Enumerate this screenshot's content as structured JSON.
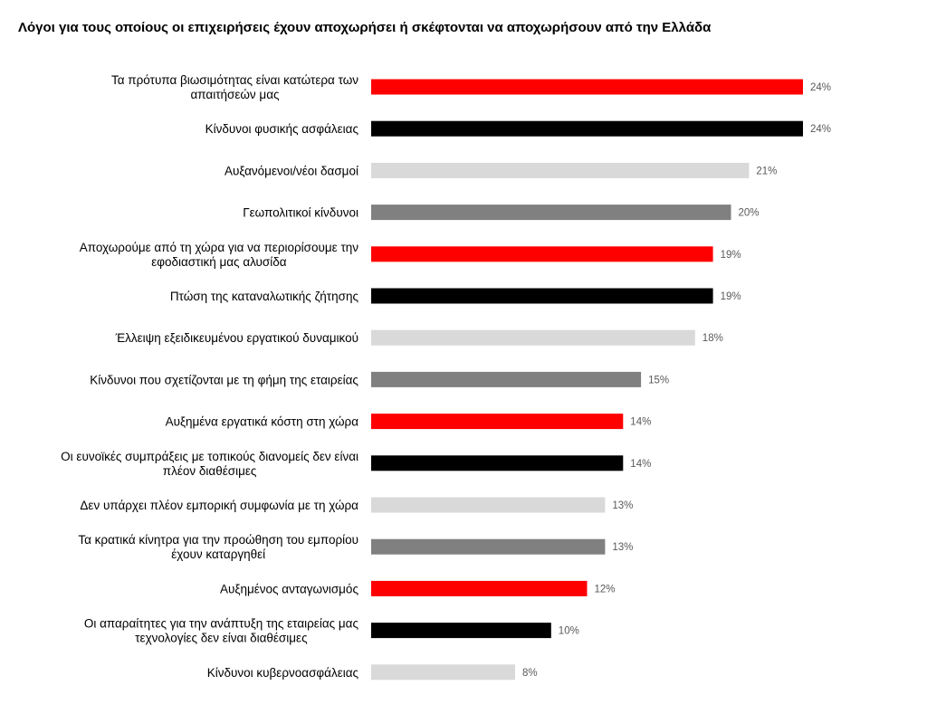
{
  "chart_data": {
    "type": "bar",
    "orientation": "horizontal",
    "title": "Λόγοι για τους οποίους οι επιχειρήσεις έχουν αποχωρήσει ή σκέφτονται να αποχωρήσουν από την Ελλάδα",
    "xlim": [
      0,
      24
    ],
    "value_suffix": "%",
    "grid": false,
    "categories": [
      [
        "Τα πρότυπα βιωσιμότητας είναι κατώτερα των",
        "απαιτήσεών μας"
      ],
      [
        "Κίνδυνοι φυσικής ασφάλειας"
      ],
      [
        "Αυξανόμενοι/νέοι δασμοί"
      ],
      [
        "Γεωπολιτικοί κίνδυνοι"
      ],
      [
        "Αποχωρούμε από τη χώρα για να περιορίσουμε την",
        "εφοδιαστική μας αλυσίδα"
      ],
      [
        "Πτώση της καταναλωτικής ζήτησης"
      ],
      [
        "Έλλειψη εξειδικευμένου εργατικού δυναμικού"
      ],
      [
        "Κίνδυνοι που σχετίζονται με τη φήμη της εταιρείας"
      ],
      [
        "Αυξημένα εργατικά κόστη στη χώρα"
      ],
      [
        "Οι ευνοϊκές συμπράξεις με τοπικούς διανομείς δεν είναι",
        "πλέον διαθέσιμες"
      ],
      [
        "Δεν υπάρχει πλέον εμπορική συμφωνία με τη χώρα"
      ],
      [
        "Τα κρατικά κίνητρα για την προώθηση του εμπορίου",
        "έχουν καταργηθεί"
      ],
      [
        "Αυξημένος ανταγωνισμός"
      ],
      [
        "Οι απαραίτητες για την ανάπτυξη της εταιρείας μας",
        "τεχνολογίες δεν είναι διαθέσιμες"
      ],
      [
        "Κίνδυνοι κυβερνοασφάλειας"
      ]
    ],
    "values": [
      24,
      24,
      21,
      20,
      19,
      19,
      18,
      15,
      14,
      14,
      13,
      13,
      12,
      10,
      8
    ],
    "colors": [
      "#ff0000",
      "#000000",
      "#d9d9d9",
      "#808080"
    ]
  }
}
